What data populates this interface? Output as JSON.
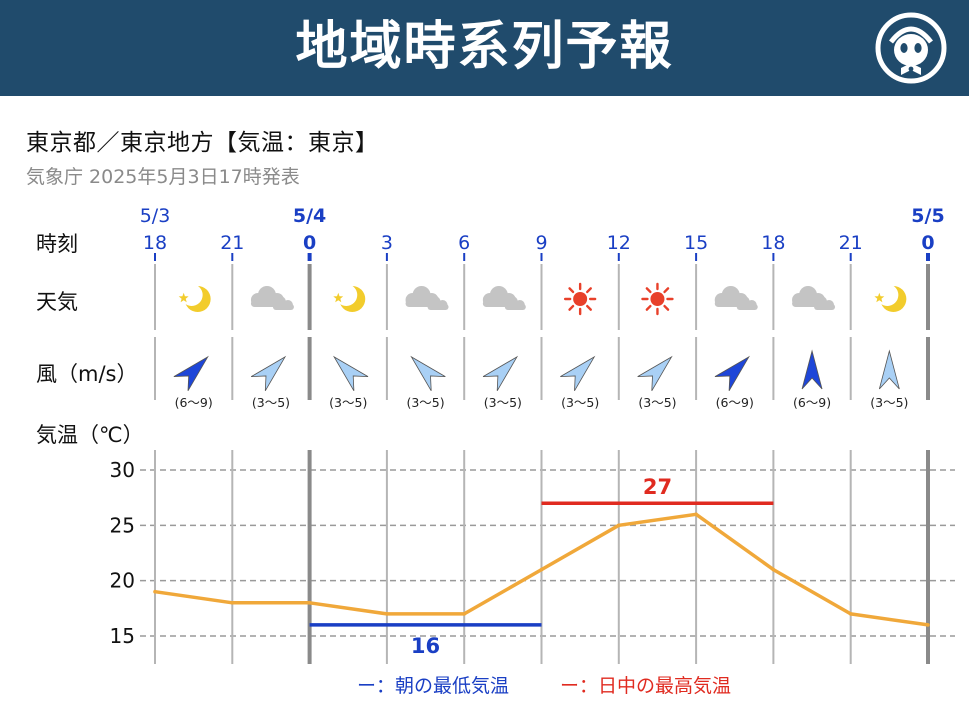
{
  "header": {
    "title": "地域時系列予報",
    "bg_color": "#204b6c"
  },
  "subtitle": "東京都／東京地方【気温：東京】",
  "issued": "気象庁 2025年5月3日17時発表",
  "rows": {
    "time_label": "時刻",
    "weather_label": "天気",
    "wind_label": "風（m/s）",
    "temp_label": "気温（℃）"
  },
  "dates": [
    {
      "label": "5/3",
      "col": 0,
      "bold": false
    },
    {
      "label": "5/4",
      "col": 2,
      "bold": true
    },
    {
      "label": "5/5",
      "col": 10,
      "bold": true
    }
  ],
  "times": [
    "18",
    "21",
    "0",
    "3",
    "6",
    "9",
    "12",
    "15",
    "18",
    "21",
    "0"
  ],
  "midnight_cols": [
    2,
    10
  ],
  "weather": [
    "moon-clear",
    "cloudy",
    "moon-clear",
    "cloudy",
    "cloudy",
    "sunny",
    "sunny",
    "cloudy",
    "cloudy",
    "moon-clear"
  ],
  "wind": [
    {
      "dir": "northeast",
      "speed": "(6〜9)",
      "strong": true
    },
    {
      "dir": "northeast",
      "speed": "(3〜5)",
      "strong": false
    },
    {
      "dir": "northwest",
      "speed": "(3〜5)",
      "strong": false
    },
    {
      "dir": "northwest",
      "speed": "(3〜5)",
      "strong": false
    },
    {
      "dir": "northeast",
      "speed": "(3〜5)",
      "strong": false
    },
    {
      "dir": "northeast",
      "speed": "(3〜5)",
      "strong": false
    },
    {
      "dir": "northeast",
      "speed": "(3〜5)",
      "strong": false
    },
    {
      "dir": "northeast",
      "speed": "(6〜9)",
      "strong": true
    },
    {
      "dir": "north",
      "speed": "(6〜9)",
      "strong": true
    },
    {
      "dir": "north",
      "speed": "(3〜5)",
      "strong": false
    }
  ],
  "legend": {
    "min_label": "ー：朝の最低気温",
    "max_label": "ー：日中の最高気温"
  },
  "colors": {
    "line": "#f0a83a",
    "min": "#1a3fc4",
    "max": "#e02b20",
    "wind_strong": "#1e46d8",
    "wind_weak": "#a9d0f5",
    "sun": "#e8402a",
    "moon": "#f2cc2c",
    "cloud": "#c4c4c4"
  },
  "chart_data": {
    "type": "line",
    "x": [
      "18",
      "21",
      "0",
      "3",
      "6",
      "9",
      "12",
      "15",
      "18",
      "21",
      "0"
    ],
    "series": [
      {
        "values": [
          19,
          18,
          18,
          17,
          17,
          21,
          25,
          26,
          21,
          17,
          16
        ]
      }
    ],
    "min_temp": {
      "value": 16,
      "label": "16",
      "from": "0",
      "to": "9"
    },
    "max_temp": {
      "value": 27,
      "label": "27",
      "from": "9",
      "to": "18"
    },
    "yticks": [
      15,
      20,
      25,
      30
    ],
    "ylim": [
      13,
      31
    ],
    "grid": true
  }
}
